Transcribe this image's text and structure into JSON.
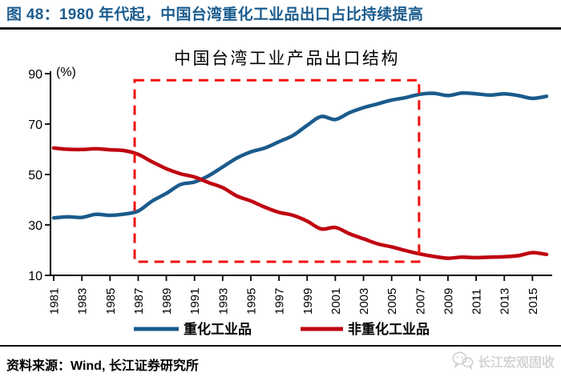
{
  "header": {
    "title": "图 48：1980 年代起，中国台湾重化工业品出口占比持续提高",
    "accent_color": "#1c5d8f"
  },
  "chart_data": {
    "type": "line",
    "title": "中国台湾工业产品出口结构",
    "unit_label": "(%)",
    "xlabel": "",
    "ylabel": "(%)",
    "ylim": [
      10,
      90
    ],
    "y_ticks": [
      90,
      70,
      50,
      30,
      10
    ],
    "x_start": 1981,
    "x_end": 2016,
    "x_ticks": [
      1981,
      1983,
      1985,
      1987,
      1989,
      1991,
      1993,
      1995,
      1997,
      1999,
      2001,
      2003,
      2005,
      2007,
      2009,
      2011,
      2013,
      2015
    ],
    "grid": "off",
    "legend_position": "bottom",
    "series": [
      {
        "name": "重化工业品",
        "color": "#1a5b8c",
        "values": [
          32.8,
          33.2,
          33.0,
          34.2,
          33.8,
          34.3,
          35.5,
          39.5,
          42.5,
          46.0,
          47.0,
          49.5,
          53.0,
          56.5,
          59.0,
          60.5,
          63.0,
          65.5,
          69.5,
          73.0,
          71.8,
          74.5,
          76.5,
          78.0,
          79.5,
          80.5,
          81.8,
          82.2,
          81.3,
          82.3,
          82.0,
          81.5,
          82.0,
          81.3,
          80.2,
          81.0
        ]
      },
      {
        "name": "非重化工业品",
        "color": "#bf0411",
        "values": [
          60.5,
          60.0,
          59.9,
          60.2,
          59.8,
          59.5,
          58.0,
          55.0,
          52.3,
          50.3,
          49.0,
          46.8,
          44.8,
          41.5,
          39.5,
          37.0,
          35.0,
          33.8,
          31.5,
          28.4,
          29.0,
          26.5,
          24.5,
          22.5,
          21.3,
          19.8,
          18.5,
          17.5,
          16.8,
          17.2,
          17.0,
          17.2,
          17.4,
          17.8,
          19.0,
          18.3
        ]
      }
    ],
    "highlight_box": {
      "color": "#f01111",
      "year_from": 1986.75,
      "year_to": 2006.95,
      "val_from": 15.4,
      "val_to": 87.4
    }
  },
  "footer": {
    "source": "资料来源：Wind, 长江证券研究所",
    "watermark": "长江宏观固收"
  }
}
